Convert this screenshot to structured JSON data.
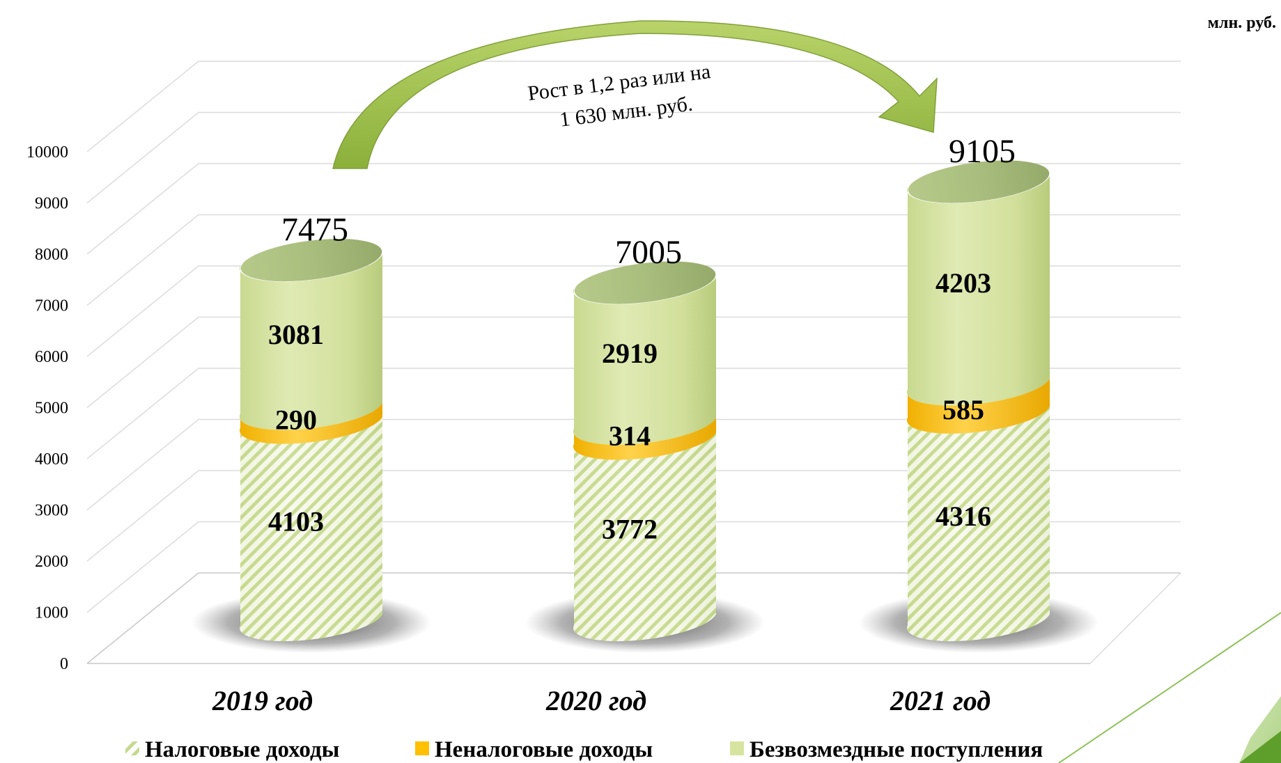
{
  "chart_data": {
    "type": "bar",
    "stacked": true,
    "unit": "млн. руб.",
    "categories": [
      "2019 год",
      "2020 год",
      "2021 год"
    ],
    "series": [
      {
        "name": "Налоговые доходы",
        "values": [
          4103,
          3772,
          4316
        ],
        "color": "#d6e6a8",
        "pattern": "hatched"
      },
      {
        "name": "Неналоговые доходы",
        "values": [
          290,
          314,
          585
        ],
        "color": "#ffc000"
      },
      {
        "name": "Безвозмездные поступления",
        "values": [
          3081,
          2919,
          4203
        ],
        "color": "#d7e4a0"
      }
    ],
    "totals": [
      "7475",
      "7005",
      "9105"
    ],
    "y_ticks": [
      "0",
      "1000",
      "2000",
      "3000",
      "4000",
      "5000",
      "6000",
      "7000",
      "8000",
      "9000",
      "10000"
    ],
    "ylim": [
      0,
      10000
    ],
    "grid": true,
    "legend_position": "bottom",
    "annotation": {
      "lines": [
        "Рост в 1,2 раз или на",
        "1 630 млн. руб."
      ],
      "arrow_from": "2019 год",
      "arrow_to": "2021 год"
    }
  }
}
